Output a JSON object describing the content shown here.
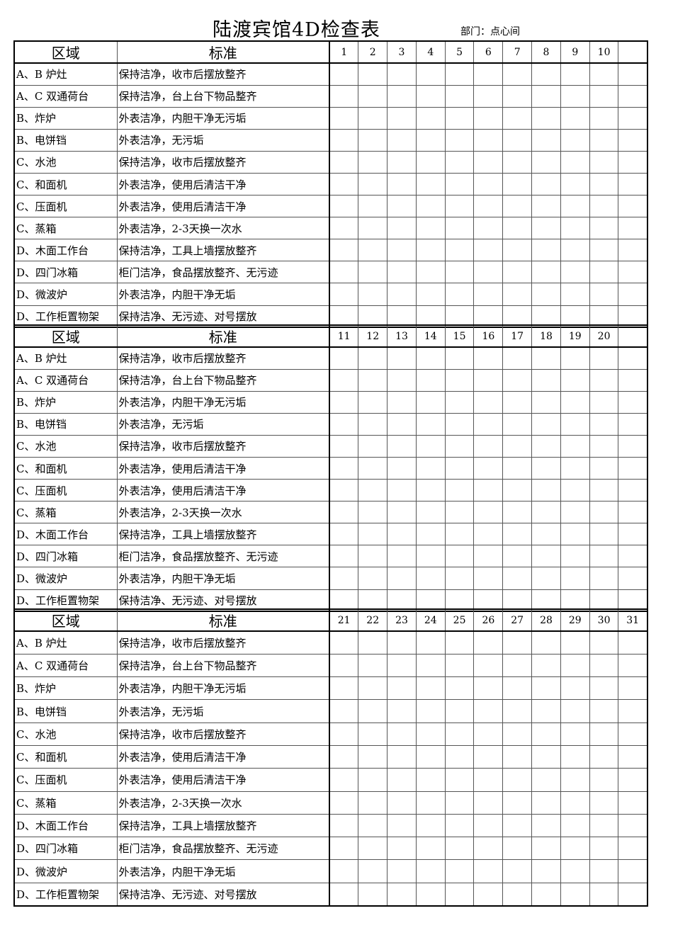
{
  "title": "陆渡宾馆4D检查表",
  "department": "部门：点心间",
  "headers": {
    "area": "区域",
    "standard": "标准"
  },
  "items": [
    {
      "area": "A、B 炉灶",
      "standard": "保持洁净，收市后摆放整齐"
    },
    {
      "area": "A、C 双通荷台",
      "standard": "保持洁净，台上台下物品整齐"
    },
    {
      "area": "B、炸炉",
      "standard": "外表洁净，内胆干净无污垢"
    },
    {
      "area": "B、电饼铛",
      "standard": "外表洁净，无污垢"
    },
    {
      "area": "C、水池",
      "standard": "保持洁净，收市后摆放整齐"
    },
    {
      "area": "C、和面机",
      "standard": "外表洁净，使用后清洁干净"
    },
    {
      "area": "C、压面机",
      "standard": "外表洁净，使用后清洁干净"
    },
    {
      "area": "C、蒸箱",
      "standard": "外表洁净，2-3天换一次水"
    },
    {
      "area": "D、木面工作台",
      "standard": "保持洁净，工具上墙摆放整齐"
    },
    {
      "area": "D、四门冰箱",
      "standard": "柜门洁净，食品摆放整齐、无污迹"
    },
    {
      "area": "D、微波炉",
      "standard": "外表洁净，内胆干净无垢"
    },
    {
      "area": "D、工作柜置物架",
      "standard": "保持洁净、无污迹、对号摆放"
    }
  ],
  "sections": [
    {
      "days": [
        "1",
        "2",
        "3",
        "4",
        "5",
        "6",
        "7",
        "8",
        "9",
        "10",
        ""
      ]
    },
    {
      "days": [
        "11",
        "12",
        "13",
        "14",
        "15",
        "16",
        "17",
        "18",
        "19",
        "20",
        ""
      ]
    },
    {
      "days": [
        "21",
        "22",
        "23",
        "24",
        "25",
        "26",
        "27",
        "28",
        "29",
        "30",
        "31"
      ]
    }
  ]
}
